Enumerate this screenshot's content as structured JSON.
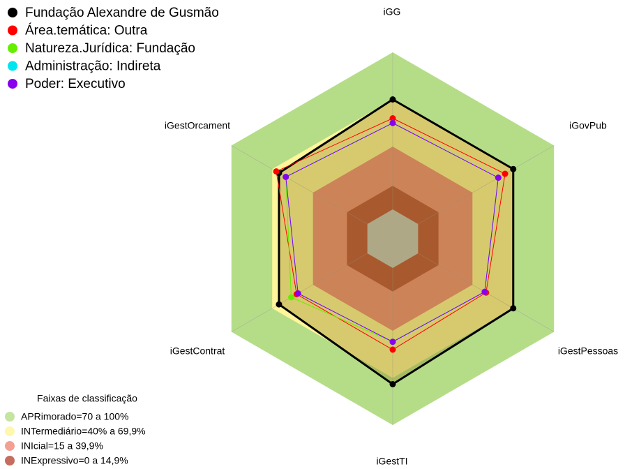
{
  "chart_data": {
    "type": "radar",
    "axes": [
      "iGG",
      "iGovPub",
      "iGestPessoas",
      "iGestTI",
      "iGestContrat",
      "iGestOrcament"
    ],
    "rlim": [
      0,
      100
    ],
    "series": [
      {
        "name": "Fundação Alexandre de Gusmão",
        "color": "#000000",
        "values": [
          70,
          70,
          70,
          74,
          65,
          65
        ]
      },
      {
        "name": "Área.temática: Outra",
        "color": "#ff0000",
        "values": [
          58,
          64,
          50,
          52,
          52,
          67
        ]
      },
      {
        "name": "Natureza.Jurídica: Fundação",
        "color": "#66ee00",
        "values": [
          55,
          59,
          49,
          47,
          56,
          60
        ]
      },
      {
        "name": "Administração: Indireta",
        "color": "#00e5ee",
        "values": [
          55,
          59,
          49,
          47,
          51,
          60
        ]
      },
      {
        "name": "Poder: Executivo",
        "color": "#8800ee",
        "values": [
          55,
          59,
          49,
          47,
          51,
          60
        ]
      }
    ],
    "bands_title": "Faixas de classificação",
    "bands": [
      {
        "label": "APRimorado=70 a 100%",
        "color": "#b5dd88",
        "from": 70,
        "to": 100
      },
      {
        "label": "INTermediário=40% a 69,9%",
        "color": "#fff59a",
        "from": 40,
        "to": 70
      },
      {
        "label": "INIcial=15 a 39,9%",
        "color": "#f08878",
        "from": 15,
        "to": 40
      },
      {
        "label": "INExpressivo=0 a 14,9%",
        "color": "#b84838",
        "from": 0,
        "to": 15
      }
    ]
  }
}
